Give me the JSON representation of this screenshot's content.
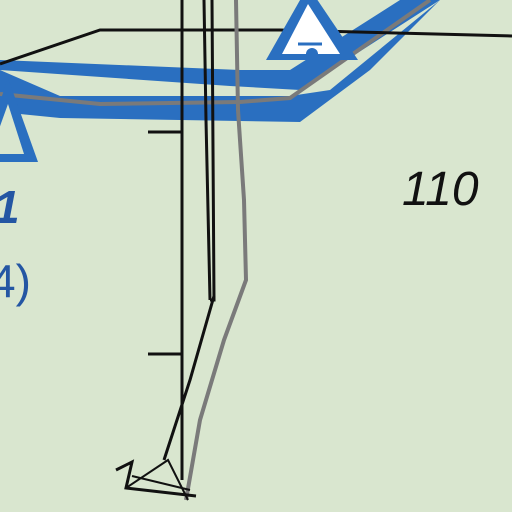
{
  "map": {
    "colors": {
      "land": "#d9e6cf",
      "highway": "#2a6fc0",
      "road": "#111111",
      "trail": "#7a7a7a",
      "highway_label": "#2456a3",
      "symbol_fill": "#ffffff"
    },
    "labels": {
      "area_number": "110",
      "route_fragment": "1",
      "paren_fragment": "4)"
    },
    "icons": {
      "top_symbol": "campground-icon",
      "left_symbol": "campground-icon",
      "bottom_symbol": "anchor-icon"
    }
  }
}
